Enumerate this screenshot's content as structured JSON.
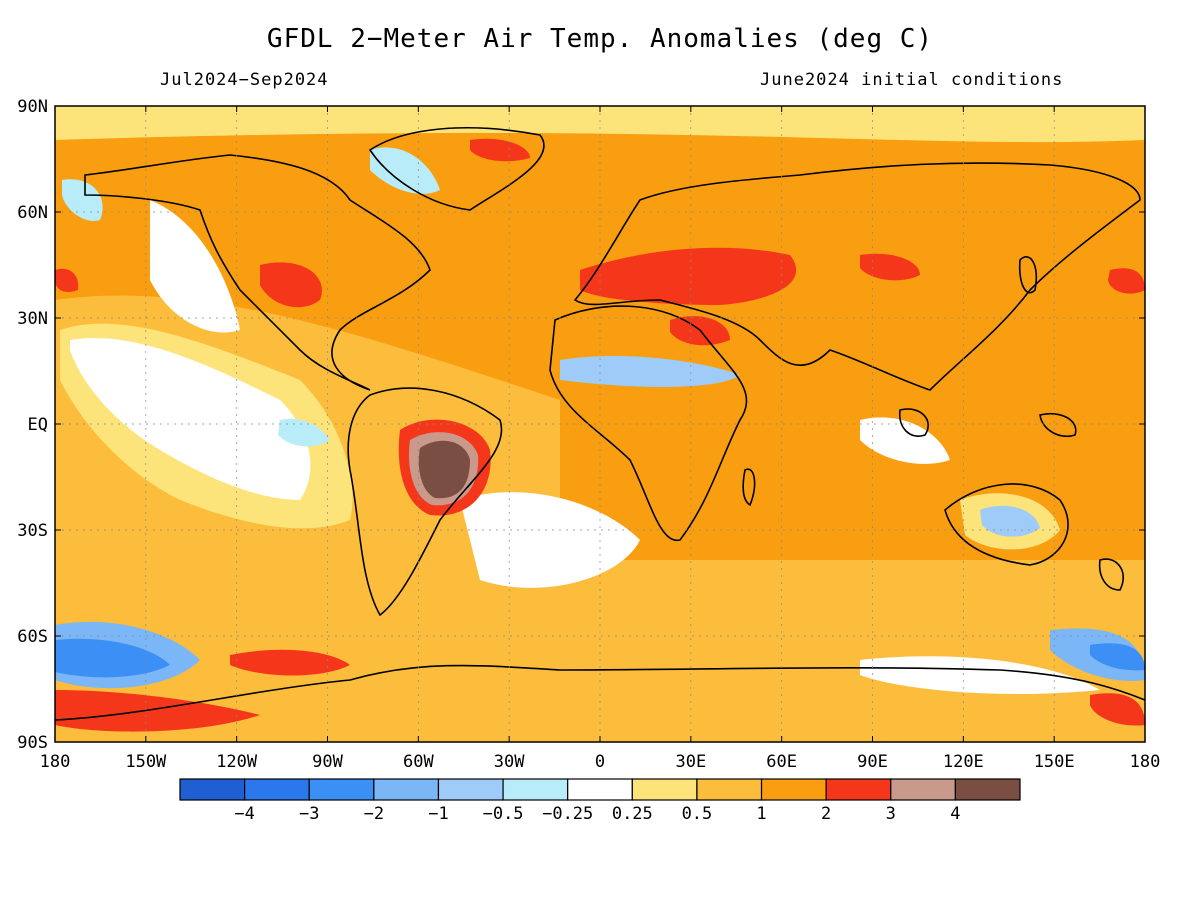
{
  "title": "GFDL 2−Meter Air Temp. Anomalies (deg C)",
  "period": "Jul2024−Sep2024",
  "init": "June2024 initial conditions",
  "lat_labels": [
    "90N",
    "60N",
    "30N",
    "EQ",
    "30S",
    "60S",
    "90S"
  ],
  "lon_labels": [
    "180",
    "150W",
    "120W",
    "90W",
    "60W",
    "30W",
    "0",
    "30E",
    "60E",
    "90E",
    "120E",
    "150E",
    "180"
  ],
  "colorbar": {
    "colors": [
      "#1f5fd1",
      "#2b78ec",
      "#3b8ff5",
      "#7bb6f7",
      "#9fcbf8",
      "#b8ecf8",
      "#ffffff",
      "#fde47a",
      "#fbbd3b",
      "#f99e10",
      "#f4371a",
      "#c9998b",
      "#7a4e42"
    ],
    "labels": [
      "−4",
      "−3",
      "−2",
      "−1",
      "−0.5",
      "−0.25",
      "0.25",
      "0.5",
      "1",
      "2",
      "3",
      "4"
    ]
  },
  "regions": [
    {
      "name": "global-background",
      "anomaly": 1.5,
      "color": "#f99e10"
    },
    {
      "name": "south-america-hotspot",
      "anomaly": 4.5,
      "color": "#7a4e42"
    },
    {
      "name": "central-asia-warm",
      "anomaly": 2.5,
      "color": "#f4371a"
    },
    {
      "name": "southern-ocean-cold",
      "anomaly": -1.5,
      "color": "#7bb6f7"
    },
    {
      "name": "tropical-pacific-neutral",
      "anomaly": 0.0,
      "color": "#ffffff"
    }
  ]
}
